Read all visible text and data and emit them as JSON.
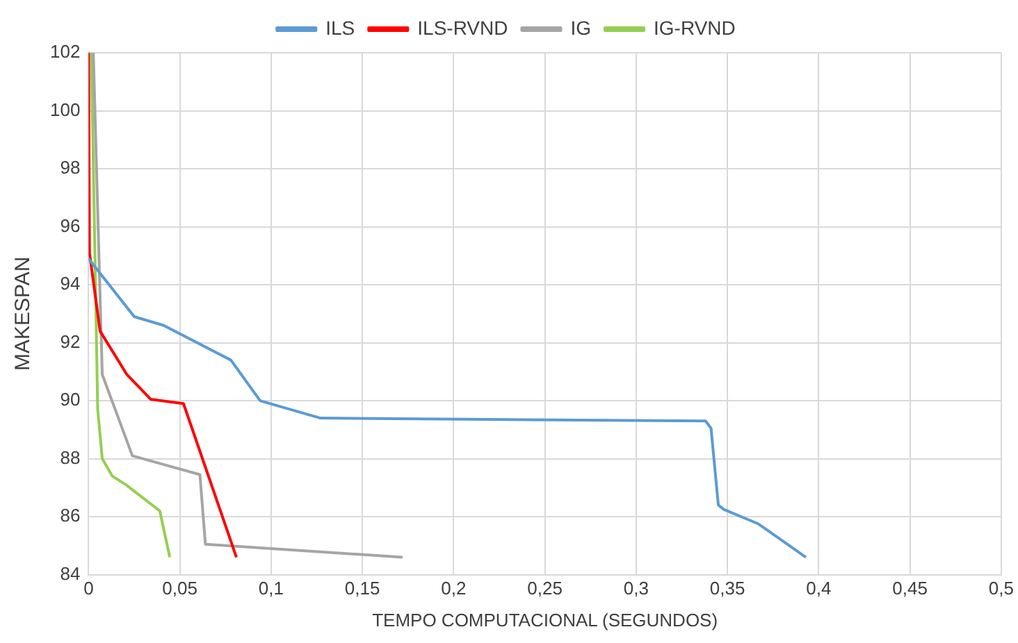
{
  "chart_data": {
    "type": "line",
    "xlabel": "TEMPO COMPUTACIONAL (SEGUNDOS)",
    "ylabel": "MAKESPAN",
    "xlim": [
      0,
      0.5
    ],
    "xticks": [
      {
        "value": 0,
        "label": "0"
      },
      {
        "value": 0.05,
        "label": "0,05"
      },
      {
        "value": 0.1,
        "label": "0,1"
      },
      {
        "value": 0.15,
        "label": "0,15"
      },
      {
        "value": 0.2,
        "label": "0,2"
      },
      {
        "value": 0.25,
        "label": "0,25"
      },
      {
        "value": 0.3,
        "label": "0,3"
      },
      {
        "value": 0.35,
        "label": "0,35"
      },
      {
        "value": 0.4,
        "label": "0,4"
      },
      {
        "value": 0.45,
        "label": "0,45"
      },
      {
        "value": 0.5,
        "label": "0,5"
      }
    ],
    "ylim": [
      84,
      102
    ],
    "yticks": [
      84,
      86,
      88,
      90,
      92,
      94,
      96,
      98,
      100,
      102
    ],
    "grid": true,
    "legend": "top",
    "marker": "none",
    "line_style": "solid",
    "series": [
      {
        "name": "ILS",
        "color": "#5b9bd5",
        "x": [
          0,
          0.025,
          0.041,
          0.078,
          0.094,
          0.127,
          0.338,
          0.341,
          0.345,
          0.348,
          0.367,
          0.393
        ],
        "values": [
          94.9,
          92.9,
          92.6,
          91.4,
          90,
          89.4,
          89.3,
          89.05,
          86.4,
          86.25,
          85.75,
          84.6
        ]
      },
      {
        "name": "ILS-RVND",
        "color": "#ff0000",
        "x": [
          0,
          0.0005,
          0.0063,
          0.021,
          0.034,
          0.052,
          0.081
        ],
        "values": [
          102,
          95.1,
          92.4,
          90.9,
          90.05,
          89.9,
          84.6
        ]
      },
      {
        "name": "IG",
        "color": "#a5a5a5",
        "x": [
          0.0026,
          0.0075,
          0.024,
          0.061,
          0.064,
          0.172
        ],
        "values": [
          102,
          90.9,
          88.1,
          87.45,
          85.05,
          84.6
        ]
      },
      {
        "name": "IG-RVND",
        "color": "#92d050",
        "x": [
          0.0015,
          0.005,
          0.0075,
          0.013,
          0.0205,
          0.039,
          0.0445
        ],
        "values": [
          102,
          89.7,
          88,
          87.4,
          87.1,
          86.2,
          84.6
        ]
      }
    ]
  }
}
